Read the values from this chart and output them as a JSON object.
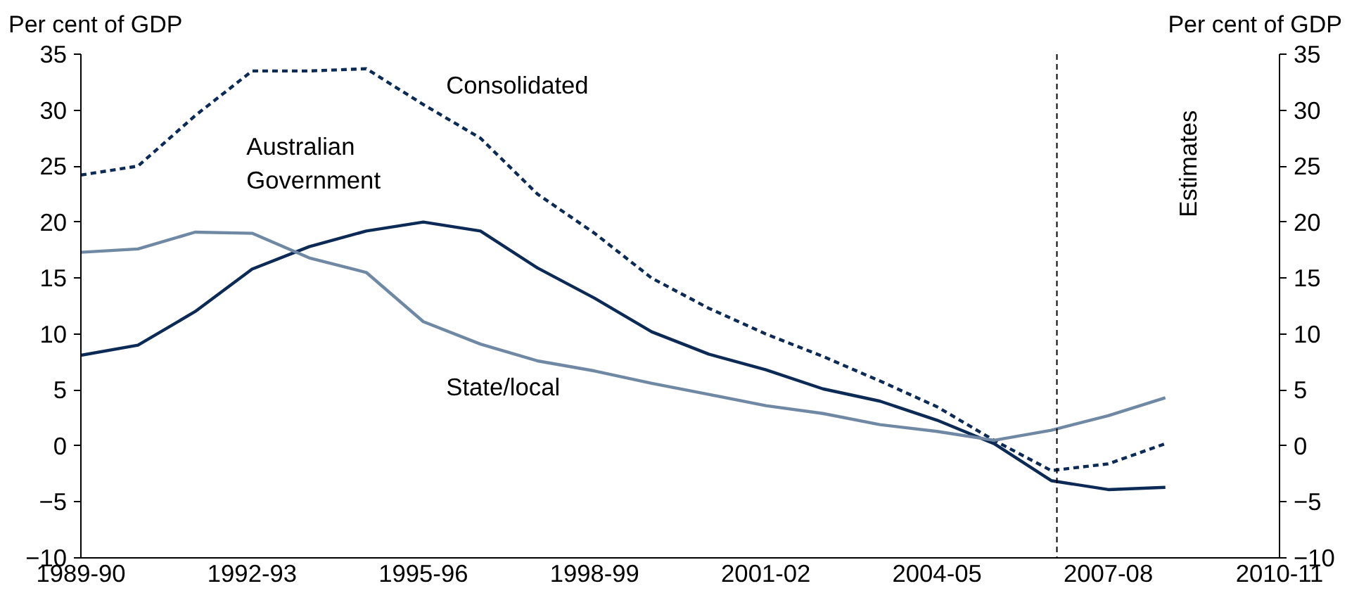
{
  "chart_data": {
    "type": "line",
    "ylabel": "Per cent of GDP",
    "y2label": "Per cent of GDP",
    "categories": [
      "1989-90",
      null,
      null,
      "1992-93",
      null,
      null,
      "1995-96",
      null,
      null,
      "1998-99",
      null,
      null,
      "2001-02",
      null,
      null,
      "2004-05",
      null,
      null,
      "2007-08",
      null,
      null,
      "2010-11"
    ],
    "series": [
      {
        "name": "Consolidated",
        "color": "#0b2a55",
        "line_style": "dashed",
        "values": [
          24.2,
          25,
          29.5,
          33.5,
          33.5,
          33.7,
          30.5,
          27.5,
          22.5,
          19,
          15,
          12.3,
          10,
          8,
          5.8,
          3.5,
          0.5,
          -2.2,
          -1.6,
          0.2,
          null,
          null
        ]
      },
      {
        "name": "Australian Government",
        "color": "#0b2a55",
        "line_style": "solid",
        "values": [
          8.1,
          9,
          12,
          15.8,
          17.8,
          19.2,
          20,
          19.2,
          15.9,
          13.2,
          10.2,
          8.2,
          6.8,
          5.1,
          4,
          2.3,
          0.2,
          -3.1,
          -3.9,
          -3.7,
          null,
          null
        ]
      },
      {
        "name": "State/local",
        "color": "#6f88a3",
        "line_style": "solid",
        "values": [
          17.3,
          17.6,
          19.1,
          19,
          16.8,
          15.5,
          11.1,
          9.1,
          7.6,
          6.7,
          5.6,
          4.6,
          3.6,
          2.9,
          1.9,
          1.3,
          0.5,
          1.4,
          2.7,
          4.3,
          null,
          null
        ]
      }
    ],
    "ylim": [
      -10,
      35
    ],
    "yticks": [
      -10,
      -5,
      0,
      5,
      10,
      15,
      20,
      25,
      30,
      35
    ],
    "y2lim": [
      -10,
      35
    ],
    "y2ticks": [
      -10,
      -5,
      0,
      5,
      10,
      15,
      20,
      25,
      30,
      35
    ],
    "annotations": [
      "Estimates"
    ],
    "marker": "none"
  }
}
